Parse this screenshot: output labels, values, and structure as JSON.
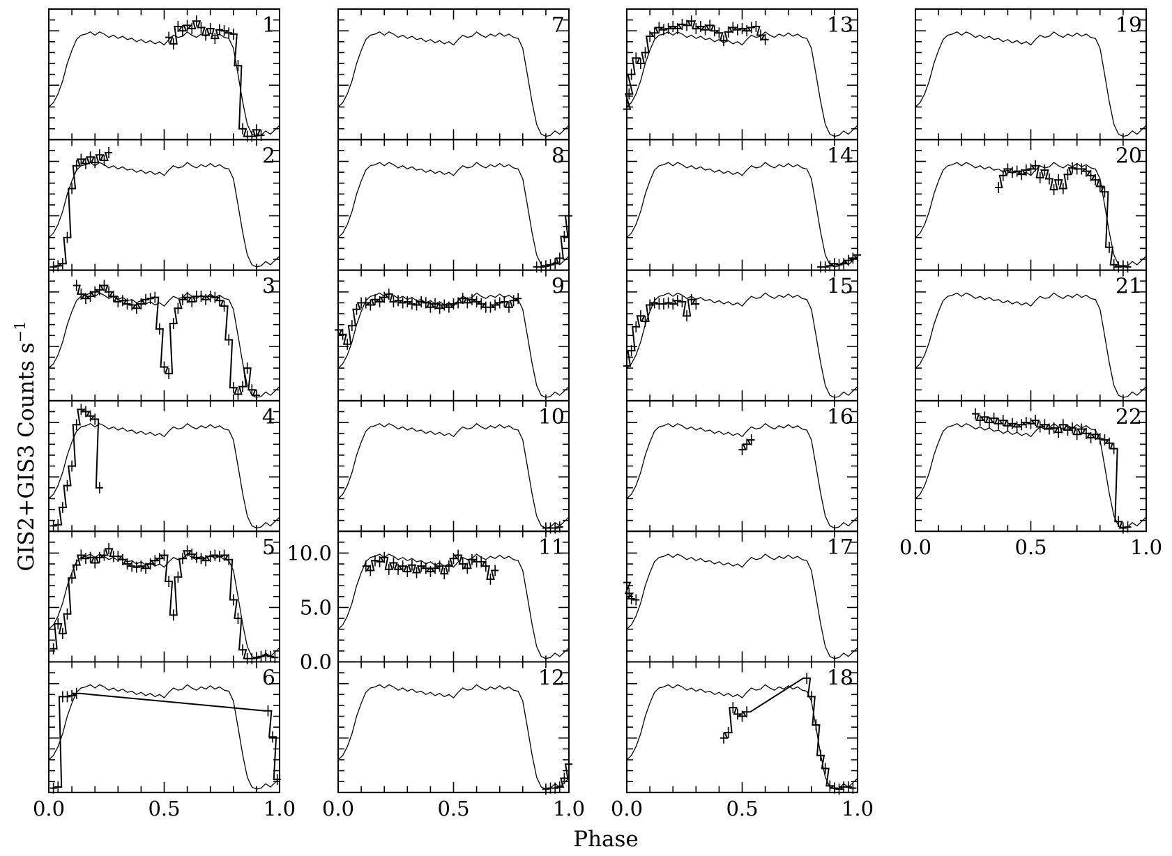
{
  "figure": {
    "ylabel": "GIS2+GIS3  Counts s",
    "ylabel_exponent": "−1",
    "xlabel": "Phase"
  },
  "chart_data": {
    "type": "line",
    "layout": "small multiples, 4 columns of stacked panels with shared phase axis",
    "columns": [
      {
        "panels": [
          1,
          2,
          3,
          4,
          5,
          6
        ],
        "x_ticks": [
          "0.0",
          "0.5",
          "1.0"
        ]
      },
      {
        "panels": [
          7,
          8,
          9,
          10,
          11,
          12
        ],
        "x_ticks": [
          "0.0",
          "0.5",
          "1.0"
        ],
        "y_ticks": [
          "0.0",
          "5.0",
          "10.0"
        ]
      },
      {
        "panels": [
          13,
          14,
          15,
          16,
          17,
          18
        ],
        "x_ticks": [
          "0.0",
          "0.5",
          "1.0"
        ]
      },
      {
        "panels": [
          19,
          20,
          21,
          22
        ],
        "x_ticks": [
          "0.0",
          "0.5",
          "1.0"
        ]
      }
    ],
    "xlim": [
      0,
      1
    ],
    "ylim": [
      0,
      12
    ],
    "model_template": {
      "x": [
        0.0,
        0.02,
        0.04,
        0.06,
        0.08,
        0.1,
        0.12,
        0.14,
        0.16,
        0.18,
        0.2,
        0.22,
        0.24,
        0.26,
        0.28,
        0.3,
        0.32,
        0.34,
        0.36,
        0.38,
        0.4,
        0.42,
        0.44,
        0.46,
        0.48,
        0.5,
        0.52,
        0.54,
        0.56,
        0.58,
        0.6,
        0.62,
        0.64,
        0.66,
        0.68,
        0.7,
        0.72,
        0.74,
        0.76,
        0.78,
        0.8,
        0.82,
        0.84,
        0.86,
        0.88,
        0.9,
        0.92,
        0.94,
        0.96,
        0.98,
        1.0
      ],
      "y": [
        3.0,
        3.4,
        4.2,
        5.4,
        7.0,
        8.2,
        9.2,
        9.6,
        9.7,
        9.9,
        9.6,
        9.9,
        9.7,
        9.4,
        9.6,
        9.3,
        9.5,
        9.2,
        9.3,
        9.0,
        9.2,
        8.9,
        9.1,
        8.8,
        9.0,
        8.7,
        9.2,
        9.6,
        9.4,
        9.5,
        9.9,
        9.6,
        9.4,
        9.7,
        9.5,
        9.8,
        9.5,
        9.7,
        9.4,
        9.3,
        8.4,
        6.0,
        3.5,
        1.4,
        0.5,
        0.3,
        0.4,
        0.8,
        0.5,
        0.9,
        1.3
      ]
    },
    "panels": [
      {
        "label": "1",
        "observed": {
          "x": [
            0.52,
            0.54,
            0.56,
            0.58,
            0.6,
            0.62,
            0.64,
            0.66,
            0.68,
            0.7,
            0.72,
            0.74,
            0.76,
            0.78,
            0.8,
            0.82,
            0.84,
            0.86,
            0.88,
            0.9,
            0.92
          ],
          "y": [
            9.4,
            8.8,
            10.4,
            10.0,
            10.5,
            10.2,
            10.9,
            10.3,
            9.6,
            10.2,
            9.3,
            10.1,
            10.0,
            9.8,
            9.7,
            6.8,
            1.0,
            0.3,
            0.3,
            0.9,
            0.4
          ]
        }
      },
      {
        "label": "2",
        "observed": {
          "x": [
            0.02,
            0.04,
            0.06,
            0.08,
            0.1,
            0.12,
            0.14,
            0.16,
            0.18,
            0.2,
            0.22,
            0.24,
            0.26
          ],
          "y": [
            0.3,
            0.4,
            0.6,
            3.0,
            7.5,
            9.6,
            10.2,
            9.8,
            10.4,
            9.9,
            10.6,
            10.1,
            10.8
          ]
        }
      },
      {
        "label": "3",
        "observed": {
          "x": [
            0.12,
            0.14,
            0.16,
            0.18,
            0.2,
            0.22,
            0.24,
            0.26,
            0.28,
            0.3,
            0.32,
            0.34,
            0.36,
            0.38,
            0.4,
            0.42,
            0.44,
            0.46,
            0.48,
            0.5,
            0.52,
            0.54,
            0.56,
            0.58,
            0.6,
            0.62,
            0.64,
            0.66,
            0.68,
            0.7,
            0.72,
            0.74,
            0.76,
            0.78,
            0.8,
            0.82,
            0.84,
            0.86,
            0.88,
            0.9
          ],
          "y": [
            10.6,
            9.8,
            9.4,
            9.6,
            10.0,
            10.2,
            10.6,
            10.0,
            9.6,
            9.1,
            9.2,
            8.9,
            8.8,
            8.5,
            8.9,
            9.3,
            9.4,
            9.5,
            6.6,
            3.1,
            2.5,
            7.1,
            8.5,
            9.3,
            9.5,
            9.1,
            9.6,
            9.6,
            9.3,
            9.6,
            9.5,
            9.2,
            8.7,
            5.6,
            1.2,
            0.6,
            1.3,
            3.0,
            1.0,
            0.5
          ]
        }
      },
      {
        "label": "4",
        "observed": {
          "x": [
            0.02,
            0.04,
            0.06,
            0.08,
            0.1,
            0.12,
            0.14,
            0.16,
            0.18,
            0.2,
            0.22
          ],
          "y": [
            0.5,
            0.6,
            2.2,
            4.2,
            6.0,
            9.8,
            11.2,
            11.0,
            10.6,
            10.3,
            4.0
          ]
        }
      },
      {
        "label": "5",
        "observed": {
          "x": [
            0.02,
            0.04,
            0.06,
            0.08,
            0.1,
            0.12,
            0.14,
            0.16,
            0.18,
            0.2,
            0.22,
            0.24,
            0.26,
            0.28,
            0.3,
            0.32,
            0.34,
            0.36,
            0.38,
            0.4,
            0.42,
            0.44,
            0.46,
            0.48,
            0.5,
            0.52,
            0.54,
            0.56,
            0.58,
            0.6,
            0.62,
            0.64,
            0.66,
            0.68,
            0.7,
            0.72,
            0.74,
            0.76,
            0.78,
            0.8,
            0.82,
            0.84,
            0.86,
            0.88,
            0.9,
            0.92,
            0.94,
            0.96,
            0.98
          ],
          "y": [
            1.2,
            3.5,
            2.6,
            4.4,
            7.7,
            8.9,
            9.8,
            9.5,
            9.6,
            9.1,
            9.6,
            9.8,
            10.4,
            9.7,
            9.7,
            9.4,
            9.0,
            8.8,
            8.7,
            8.8,
            8.6,
            9.0,
            9.3,
            9.5,
            9.8,
            7.4,
            4.3,
            7.8,
            9.5,
            10.2,
            9.9,
            9.6,
            9.5,
            9.3,
            9.7,
            9.8,
            9.7,
            9.8,
            9.4,
            5.7,
            4.0,
            1.1,
            0.3,
            0.3,
            0.4,
            0.5,
            0.6,
            0.5,
            0.4
          ]
        }
      },
      {
        "label": "6",
        "observed": {
          "x": [
            0.02,
            0.04,
            0.06,
            0.08,
            0.1,
            0.12,
            0.95,
            0.97,
            0.99
          ],
          "y": [
            0.4,
            0.5,
            8.8,
            8.8,
            8.9,
            9.1,
            7.5,
            5.1,
            1.2
          ]
        }
      },
      {
        "label": "7",
        "observed": {
          "x": [],
          "y": []
        }
      },
      {
        "label": "8",
        "observed": {
          "x": [
            0.86,
            0.88,
            0.9,
            0.92,
            0.94,
            0.96,
            0.98,
            1.0
          ],
          "y": [
            0.3,
            0.3,
            0.4,
            0.5,
            0.6,
            1.1,
            3.1,
            5.0
          ]
        }
      },
      {
        "label": "9",
        "observed": {
          "x": [
            0.0,
            0.02,
            0.04,
            0.06,
            0.08,
            0.1,
            0.12,
            0.14,
            0.16,
            0.18,
            0.2,
            0.22,
            0.24,
            0.26,
            0.28,
            0.3,
            0.32,
            0.34,
            0.36,
            0.38,
            0.4,
            0.42,
            0.44,
            0.46,
            0.48,
            0.5,
            0.52,
            0.54,
            0.56,
            0.58,
            0.6,
            0.62,
            0.64,
            0.66,
            0.68,
            0.7,
            0.72,
            0.74,
            0.76,
            0.78
          ],
          "y": [
            6.5,
            6.1,
            5.2,
            6.9,
            8.4,
            9.0,
            9.0,
            8.8,
            9.3,
            9.1,
            9.5,
            9.8,
            9.1,
            9.2,
            9.0,
            9.1,
            8.9,
            8.8,
            9.1,
            9.0,
            8.6,
            8.9,
            8.5,
            8.8,
            8.6,
            8.9,
            9.0,
            9.4,
            9.0,
            9.3,
            9.1,
            8.9,
            8.6,
            8.6,
            8.8,
            9.0,
            9.1,
            8.6,
            9.2,
            9.4
          ]
        }
      },
      {
        "label": "10",
        "observed": {
          "x": [
            0.9,
            0.92,
            0.94,
            0.96
          ],
          "y": [
            0.3,
            0.3,
            0.3,
            0.4
          ]
        }
      },
      {
        "label": "11",
        "observed": {
          "x": [
            0.12,
            0.14,
            0.16,
            0.18,
            0.2,
            0.22,
            0.24,
            0.26,
            0.28,
            0.3,
            0.32,
            0.34,
            0.36,
            0.38,
            0.4,
            0.42,
            0.44,
            0.46,
            0.48,
            0.5,
            0.52,
            0.54,
            0.56,
            0.58,
            0.6,
            0.62,
            0.64,
            0.66,
            0.68
          ],
          "y": [
            8.8,
            8.4,
            9.3,
            9.2,
            9.6,
            8.5,
            9.1,
            8.5,
            8.8,
            8.3,
            8.9,
            8.2,
            8.8,
            8.6,
            8.3,
            8.6,
            8.8,
            8.1,
            8.8,
            9.5,
            9.8,
            9.0,
            8.6,
            9.4,
            9.2,
            9.2,
            8.8,
            7.6,
            8.4
          ]
        }
      },
      {
        "label": "12",
        "observed": {
          "x": [
            0.9,
            0.92,
            0.94,
            0.96,
            0.98,
            1.0
          ],
          "y": [
            0.3,
            0.4,
            0.4,
            0.5,
            1.3,
            2.6
          ]
        }
      },
      {
        "label": "13",
        "observed": {
          "x": [
            0.0,
            0.01,
            0.02,
            0.04,
            0.06,
            0.08,
            0.1,
            0.12,
            0.14,
            0.16,
            0.18,
            0.2,
            0.22,
            0.24,
            0.26,
            0.28,
            0.3,
            0.32,
            0.34,
            0.36,
            0.38,
            0.4,
            0.42,
            0.44,
            0.46,
            0.48,
            0.5,
            0.52,
            0.54,
            0.56,
            0.58,
            0.6
          ],
          "y": [
            2.8,
            4.2,
            6.0,
            7.5,
            7.0,
            8.0,
            9.5,
            9.8,
            10.3,
            10.1,
            10.2,
            10.4,
            10.2,
            10.6,
            10.5,
            10.9,
            10.2,
            10.4,
            10.1,
            10.5,
            10.0,
            9.8,
            9.1,
            9.9,
            10.3,
            10.1,
            10.2,
            10.0,
            10.3,
            10.4,
            9.6,
            9.2
          ]
        }
      },
      {
        "label": "14",
        "observed": {
          "x": [
            0.84,
            0.86,
            0.88,
            0.9,
            0.92,
            0.94,
            0.96,
            0.98,
            1.0
          ],
          "y": [
            0.3,
            0.3,
            0.4,
            0.6,
            0.5,
            0.6,
            0.9,
            1.1,
            1.4
          ]
        }
      },
      {
        "label": "15",
        "observed": {
          "x": [
            0.0,
            0.02,
            0.04,
            0.06,
            0.08,
            0.1,
            0.12,
            0.14,
            0.16,
            0.18,
            0.2,
            0.22,
            0.24,
            0.26,
            0.28,
            0.3
          ],
          "y": [
            3.2,
            4.6,
            6.8,
            7.8,
            7.3,
            8.8,
            9.0,
            8.9,
            8.9,
            9.0,
            8.9,
            9.2,
            9.1,
            7.8,
            9.3,
            8.9
          ]
        }
      },
      {
        "label": "16",
        "observed": {
          "x": [
            0.5,
            0.52,
            0.54
          ],
          "y": [
            7.5,
            8.0,
            8.4
          ]
        }
      },
      {
        "label": "17",
        "observed": {
          "x": [
            0.0,
            0.01,
            0.02,
            0.04
          ],
          "y": [
            7.3,
            6.3,
            5.8,
            5.7
          ]
        }
      },
      {
        "label": "18",
        "observed": {
          "x": [
            0.42,
            0.44,
            0.46,
            0.48,
            0.5,
            0.52,
            0.78,
            0.8,
            0.82,
            0.84,
            0.86,
            0.88,
            0.9,
            0.92,
            0.94,
            0.96,
            0.98
          ],
          "y": [
            5.0,
            5.5,
            7.8,
            7.2,
            7.0,
            7.4,
            10.5,
            8.8,
            6.2,
            3.4,
            2.2,
            0.6,
            0.4,
            0.3,
            0.5,
            0.5,
            0.4
          ]
        }
      },
      {
        "label": "19",
        "observed": {
          "x": [],
          "y": []
        }
      },
      {
        "label": "20",
        "observed": {
          "x": [
            0.36,
            0.38,
            0.4,
            0.42,
            0.44,
            0.46,
            0.48,
            0.5,
            0.52,
            0.54,
            0.56,
            0.58,
            0.6,
            0.62,
            0.64,
            0.66,
            0.68,
            0.7,
            0.72,
            0.74,
            0.76,
            0.78,
            0.8,
            0.82,
            0.84,
            0.86,
            0.88,
            0.9,
            0.92
          ],
          "y": [
            7.6,
            8.7,
            9.3,
            9.0,
            9.1,
            8.8,
            9.2,
            9.3,
            9.6,
            8.5,
            9.2,
            8.4,
            7.4,
            8.3,
            7.5,
            8.8,
            9.4,
            9.3,
            9.3,
            9.1,
            8.7,
            8.3,
            7.7,
            7.2,
            2.1,
            0.5,
            0.3,
            0.4,
            0.3
          ]
        }
      },
      {
        "label": "21",
        "observed": {
          "x": [],
          "y": []
        }
      },
      {
        "label": "22",
        "observed": {
          "x": [
            0.26,
            0.28,
            0.3,
            0.32,
            0.34,
            0.36,
            0.38,
            0.4,
            0.42,
            0.44,
            0.46,
            0.48,
            0.5,
            0.52,
            0.54,
            0.56,
            0.58,
            0.6,
            0.62,
            0.64,
            0.66,
            0.68,
            0.7,
            0.72,
            0.74,
            0.76,
            0.78,
            0.8,
            0.82,
            0.84,
            0.86,
            0.88,
            0.9,
            0.92
          ],
          "y": [
            10.8,
            10.2,
            10.5,
            10.0,
            10.4,
            9.9,
            10.2,
            9.7,
            9.9,
            9.6,
            9.8,
            10.0,
            9.9,
            10.2,
            9.6,
            9.8,
            9.4,
            9.5,
            9.1,
            9.8,
            9.3,
            9.5,
            8.9,
            9.4,
            9.0,
            8.6,
            8.9,
            8.5,
            8.4,
            8.1,
            7.6,
            0.9,
            0.3,
            0.4
          ]
        }
      }
    ]
  }
}
